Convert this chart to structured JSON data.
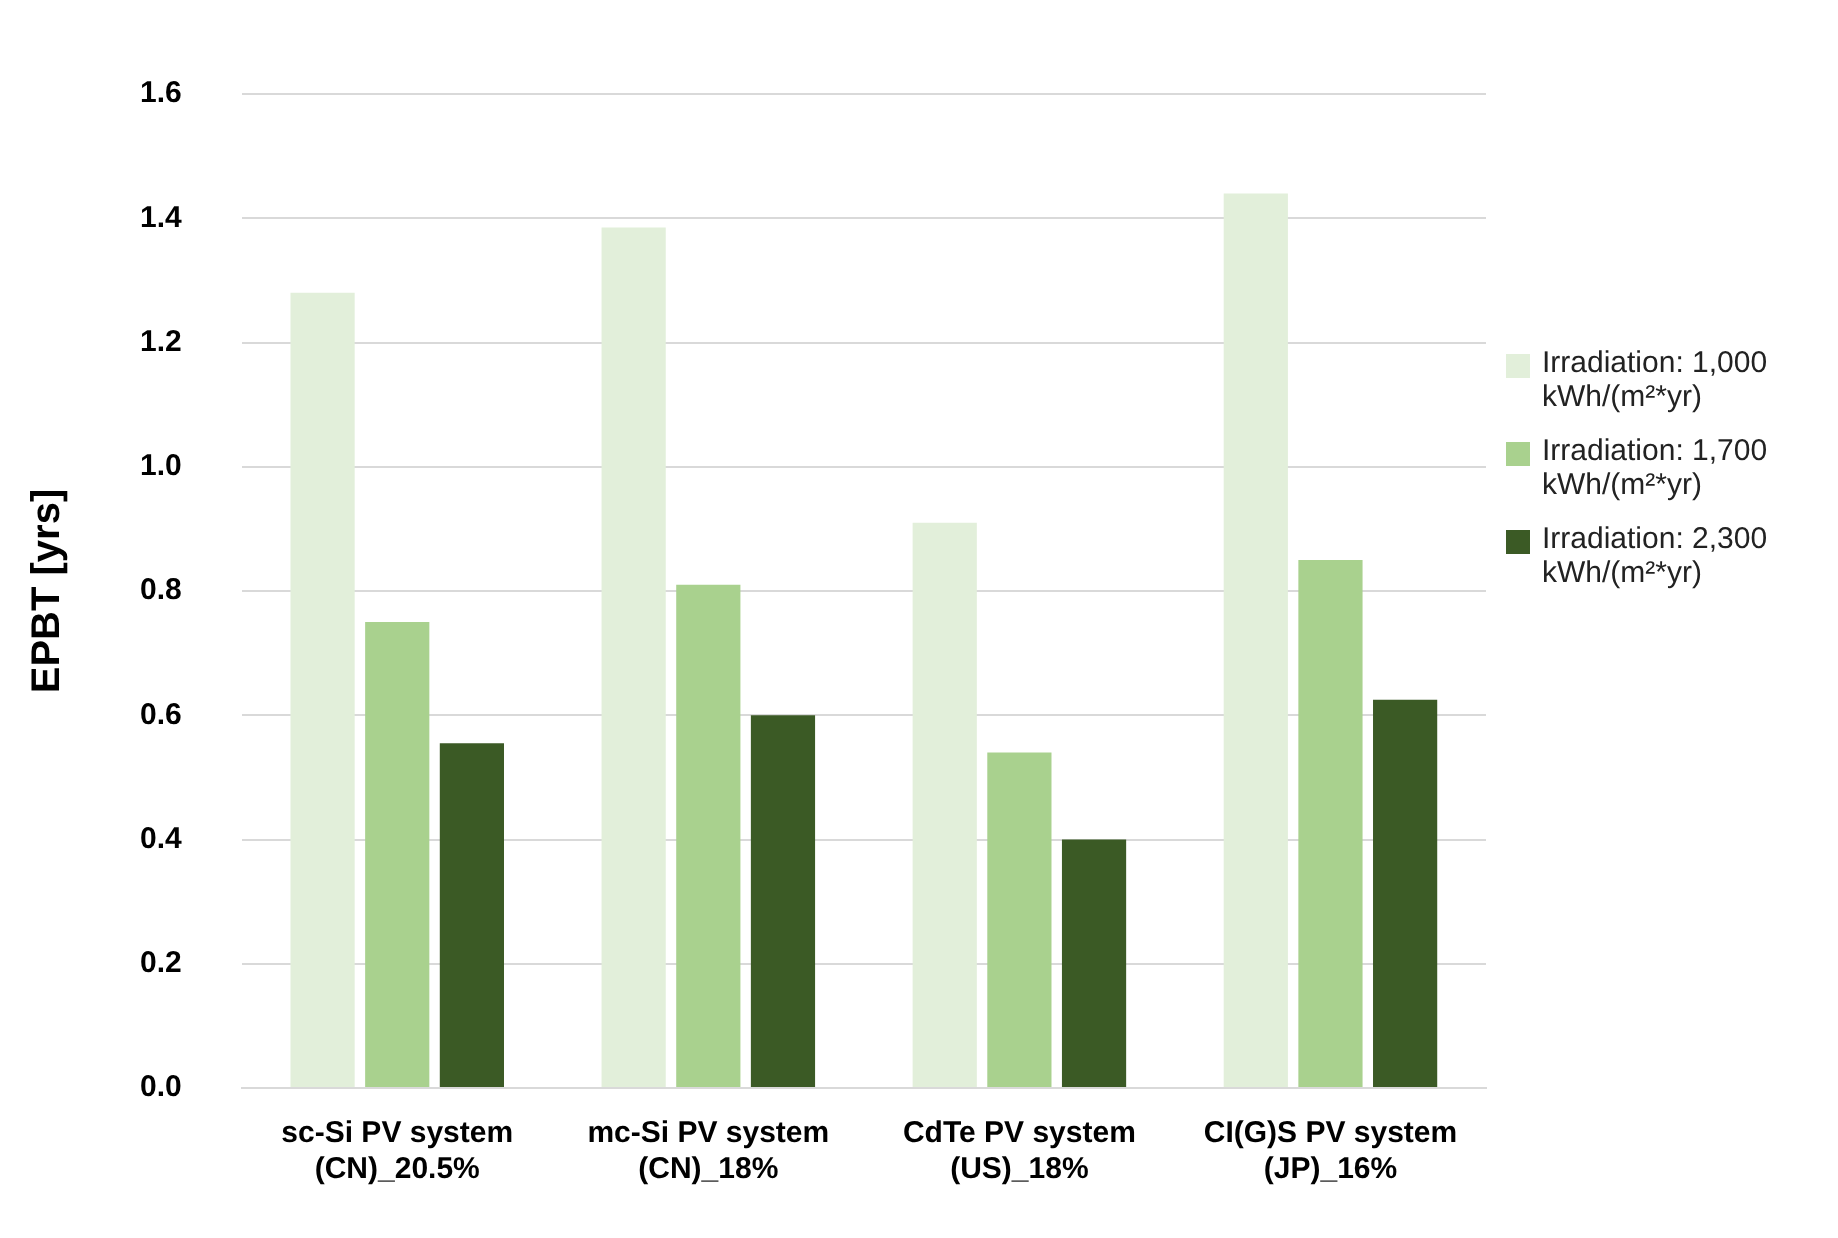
{
  "chart_data": {
    "type": "bar",
    "ylabel": "EPBT [yrs]",
    "categories": [
      "sc-Si PV system (CN)_20.5%",
      "mc-Si PV system (CN)_18%",
      "CdTe PV system (US)_18%",
      "CI(G)S PV system (JP)_16%"
    ],
    "series": [
      {
        "name": "Irradiation: 1,000 kWh/(m²*yr)",
        "color": "#e2efda",
        "values": [
          1.28,
          1.385,
          0.91,
          1.44
        ]
      },
      {
        "name": "Irradiation: 1,700 kWh/(m²*yr)",
        "color": "#a9d18e",
        "values": [
          0.75,
          0.81,
          0.54,
          0.85
        ]
      },
      {
        "name": "Irradiation: 2,300 kWh/(m²*yr)",
        "color": "#3b5a25",
        "values": [
          0.555,
          0.6,
          0.4,
          0.625
        ]
      }
    ],
    "ylim": [
      0,
      1.6
    ],
    "yticks": [
      {
        "value": 0,
        "label": "0.0"
      },
      {
        "value": 0.2,
        "label": "0.2"
      },
      {
        "value": 0.4,
        "label": "0.4"
      },
      {
        "value": 0.6,
        "label": "0.6"
      },
      {
        "value": 0.8,
        "label": "0.8"
      },
      {
        "value": 1,
        "label": "1.0"
      },
      {
        "value": 1.2,
        "label": "1.2"
      },
      {
        "value": 1.4,
        "label": "1.4"
      },
      {
        "value": 1.6,
        "label": "1.6"
      }
    ],
    "grid": "y",
    "legend": "right"
  }
}
